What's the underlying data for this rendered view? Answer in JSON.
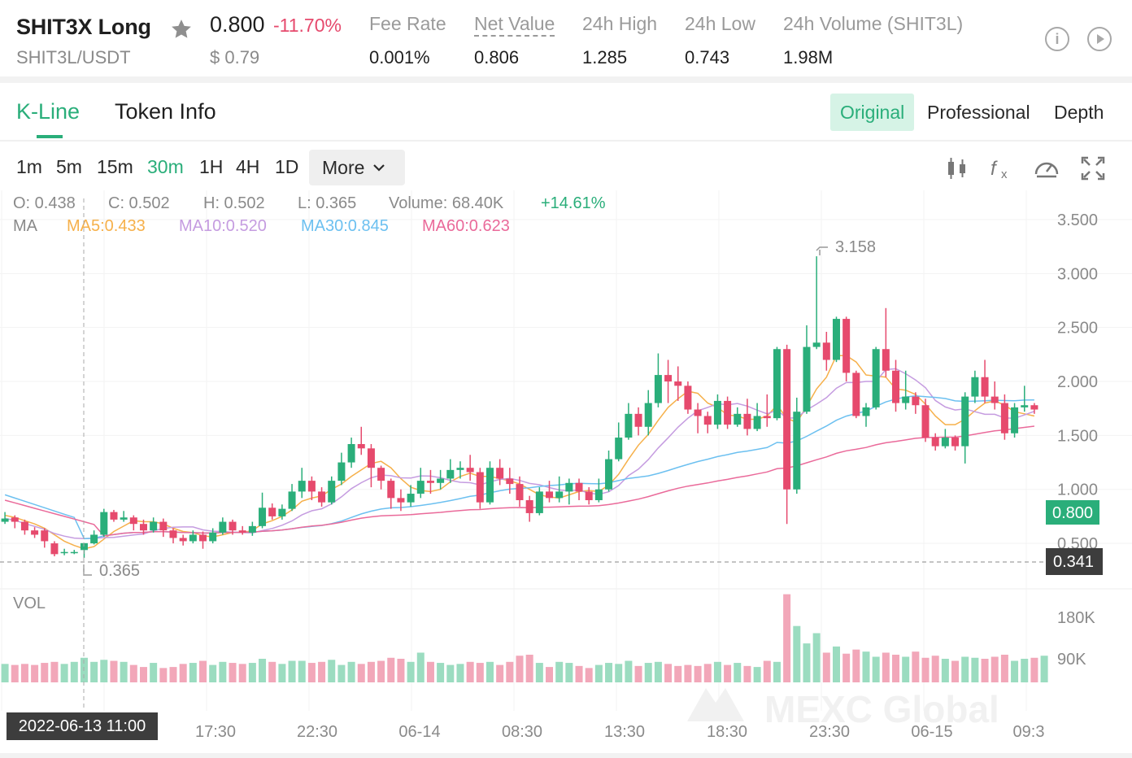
{
  "header": {
    "symbol": "SHIT3X Long",
    "pair": "SHIT3L/USDT",
    "price": "0.800",
    "change": "-11.70%",
    "usd_price": "$ 0.79",
    "stats": [
      {
        "label": "Fee Rate",
        "value": "0.001%"
      },
      {
        "label": "Net Value",
        "value": "0.806"
      },
      {
        "label": "24h High",
        "value": "1.285"
      },
      {
        "label": "24h Low",
        "value": "0.743"
      },
      {
        "label": "24h Volume (SHIT3L)",
        "value": "1.98M"
      }
    ],
    "icons": [
      "info-icon",
      "play-icon"
    ]
  },
  "tabs": {
    "left": [
      "K-Line",
      "Token Info"
    ],
    "active": "K-Line",
    "views": [
      "Original",
      "Professional",
      "Depth"
    ],
    "active_view": "Original"
  },
  "intervals": {
    "items": [
      "1m",
      "5m",
      "15m",
      "30m",
      "1H",
      "4H",
      "1D"
    ],
    "active": "30m",
    "more_label": "More"
  },
  "toolbar_icons": [
    "candle-type-icon",
    "indicator-fx-icon",
    "gauge-icon",
    "fullscreen-icon"
  ],
  "ohlc": {
    "open": "O: 0.438",
    "close": "C: 0.502",
    "high": "H: 0.502",
    "low": "L: 0.365",
    "volume": "Volume: 68.40K",
    "change": "+14.61%"
  },
  "ma": {
    "label": "MA",
    "ma5": "MA5:0.433",
    "ma10": "MA10:0.520",
    "ma30": "MA30:0.845",
    "ma60": "MA60:0.623"
  },
  "chart_data": {
    "type": "candlestick",
    "y_ticks": [
      "3.500",
      "3.000",
      "2.500",
      "2.000",
      "1.500",
      "1.000",
      "0.500"
    ],
    "ylim": [
      0.3,
      3.75
    ],
    "current_price": "0.800",
    "crosshair_price": "0.341",
    "high_marker": "3.158",
    "low_marker": "0.365",
    "crosshair_time": "2022-06-13 11:00",
    "x_ticks": [
      "17:30",
      "22:30",
      "06-14",
      "08:30",
      "13:30",
      "18:30",
      "23:30",
      "06-15",
      "09:3"
    ],
    "vol_label": "VOL",
    "vol_ticks": [
      "180K",
      "90K"
    ],
    "watermark": "MEXC Global",
    "candles": [
      [
        0.7,
        0.73,
        0.79,
        0.68
      ],
      [
        0.74,
        0.7,
        0.76,
        0.64
      ],
      [
        0.7,
        0.62,
        0.72,
        0.58
      ],
      [
        0.62,
        0.58,
        0.65,
        0.55
      ],
      [
        0.62,
        0.52,
        0.64,
        0.46
      ],
      [
        0.5,
        0.4,
        0.52,
        0.38
      ],
      [
        0.41,
        0.42,
        0.45,
        0.39
      ],
      [
        0.42,
        0.42,
        0.44,
        0.4
      ],
      [
        0.438,
        0.502,
        0.502,
        0.365
      ],
      [
        0.5,
        0.58,
        0.62,
        0.49
      ],
      [
        0.58,
        0.79,
        0.82,
        0.56
      ],
      [
        0.79,
        0.72,
        0.81,
        0.7
      ],
      [
        0.72,
        0.74,
        0.8,
        0.7
      ],
      [
        0.74,
        0.68,
        0.76,
        0.62
      ],
      [
        0.68,
        0.62,
        0.72,
        0.58
      ],
      [
        0.62,
        0.7,
        0.74,
        0.6
      ],
      [
        0.7,
        0.62,
        0.73,
        0.56
      ],
      [
        0.62,
        0.55,
        0.64,
        0.5
      ],
      [
        0.55,
        0.52,
        0.58,
        0.48
      ],
      [
        0.52,
        0.58,
        0.62,
        0.5
      ],
      [
        0.58,
        0.52,
        0.61,
        0.45
      ],
      [
        0.52,
        0.6,
        0.64,
        0.5
      ],
      [
        0.6,
        0.7,
        0.74,
        0.58
      ],
      [
        0.7,
        0.62,
        0.72,
        0.58
      ],
      [
        0.62,
        0.6,
        0.66,
        0.58
      ],
      [
        0.6,
        0.66,
        0.7,
        0.57
      ],
      [
        0.66,
        0.83,
        0.97,
        0.64
      ],
      [
        0.83,
        0.75,
        0.87,
        0.72
      ],
      [
        0.75,
        0.82,
        0.86,
        0.72
      ],
      [
        0.82,
        0.98,
        1.05,
        0.8
      ],
      [
        0.98,
        1.08,
        1.2,
        0.92
      ],
      [
        1.08,
        0.98,
        1.12,
        0.9
      ],
      [
        0.98,
        0.88,
        1.02,
        0.84
      ],
      [
        0.88,
        1.08,
        1.12,
        0.86
      ],
      [
        1.08,
        1.25,
        1.34,
        1.04
      ],
      [
        1.25,
        1.42,
        1.48,
        1.2
      ],
      [
        1.42,
        1.38,
        1.58,
        1.32
      ],
      [
        1.38,
        1.2,
        1.42,
        1.02
      ],
      [
        1.2,
        1.08,
        1.22,
        1.0
      ],
      [
        1.08,
        0.92,
        1.1,
        0.82
      ],
      [
        0.92,
        0.88,
        1.0,
        0.8
      ],
      [
        0.88,
        0.96,
        1.04,
        0.84
      ],
      [
        0.96,
        1.08,
        1.2,
        0.92
      ],
      [
        1.08,
        1.06,
        1.18,
        0.96
      ],
      [
        1.06,
        1.1,
        1.18,
        1.0
      ],
      [
        1.1,
        1.18,
        1.28,
        1.06
      ],
      [
        1.18,
        1.2,
        1.26,
        1.1
      ],
      [
        1.2,
        1.16,
        1.32,
        1.08
      ],
      [
        1.16,
        0.88,
        1.2,
        0.82
      ],
      [
        0.88,
        1.2,
        1.26,
        0.86
      ],
      [
        1.2,
        1.1,
        1.28,
        1.04
      ],
      [
        1.1,
        1.05,
        1.2,
        0.96
      ],
      [
        1.05,
        0.9,
        1.12,
        0.84
      ],
      [
        0.9,
        0.78,
        0.94,
        0.7
      ],
      [
        0.78,
        0.98,
        1.02,
        0.76
      ],
      [
        0.98,
        0.92,
        1.08,
        0.88
      ],
      [
        0.92,
        0.98,
        1.12,
        0.88
      ],
      [
        0.98,
        1.06,
        1.1,
        0.86
      ],
      [
        1.06,
        0.98,
        1.1,
        0.9
      ],
      [
        0.98,
        0.9,
        1.02,
        0.86
      ],
      [
        0.9,
        1.0,
        1.1,
        0.88
      ],
      [
        1.0,
        1.28,
        1.36,
        0.98
      ],
      [
        1.28,
        1.48,
        1.62,
        1.26
      ],
      [
        1.48,
        1.7,
        1.8,
        1.46
      ],
      [
        1.7,
        1.58,
        1.76,
        1.5
      ],
      [
        1.58,
        1.8,
        1.92,
        1.5
      ],
      [
        1.8,
        2.06,
        2.26,
        1.76
      ],
      [
        2.06,
        2.0,
        2.2,
        1.8
      ],
      [
        2.0,
        1.96,
        2.14,
        1.82
      ],
      [
        1.96,
        1.74,
        2.0,
        1.7
      ],
      [
        1.74,
        1.68,
        1.8,
        1.52
      ],
      [
        1.68,
        1.6,
        1.72,
        1.52
      ],
      [
        1.6,
        1.82,
        1.88,
        1.56
      ],
      [
        1.82,
        1.6,
        1.86,
        1.56
      ],
      [
        1.6,
        1.7,
        1.76,
        1.58
      ],
      [
        1.7,
        1.56,
        1.84,
        1.5
      ],
      [
        1.56,
        1.68,
        1.8,
        1.54
      ],
      [
        1.68,
        1.66,
        1.88,
        1.58
      ],
      [
        1.66,
        2.3,
        2.32,
        1.64
      ],
      [
        2.3,
        1.0,
        2.34,
        0.68
      ],
      [
        1.0,
        1.72,
        1.85,
        0.96
      ],
      [
        1.72,
        2.32,
        2.52,
        1.7
      ],
      [
        2.32,
        2.36,
        3.16,
        2.3
      ],
      [
        2.36,
        2.2,
        2.46,
        2.1
      ],
      [
        2.2,
        2.58,
        2.6,
        2.18
      ],
      [
        2.58,
        2.08,
        2.6,
        2.0
      ],
      [
        2.08,
        1.68,
        2.1,
        1.66
      ],
      [
        1.68,
        1.76,
        1.8,
        1.58
      ],
      [
        1.76,
        2.3,
        2.32,
        1.74
      ],
      [
        2.3,
        2.1,
        2.68,
        2.04
      ],
      [
        2.1,
        1.8,
        2.2,
        1.72
      ],
      [
        1.8,
        1.86,
        2.1,
        1.74
      ],
      [
        1.86,
        1.78,
        1.9,
        1.7
      ],
      [
        1.78,
        1.48,
        1.84,
        1.44
      ],
      [
        1.48,
        1.4,
        1.52,
        1.36
      ],
      [
        1.4,
        1.48,
        1.56,
        1.38
      ],
      [
        1.48,
        1.4,
        1.5,
        1.36
      ],
      [
        1.4,
        1.86,
        1.9,
        1.24
      ],
      [
        1.86,
        2.04,
        2.1,
        1.8
      ],
      [
        2.04,
        1.86,
        2.2,
        1.8
      ],
      [
        1.86,
        1.8,
        2.0,
        1.74
      ],
      [
        1.8,
        1.52,
        1.88,
        1.46
      ],
      [
        1.52,
        1.76,
        1.8,
        1.48
      ],
      [
        1.76,
        1.78,
        1.96,
        1.72
      ],
      [
        1.78,
        1.74,
        1.8,
        1.7
      ]
    ],
    "volume_k": [
      36,
      34,
      36,
      34,
      38,
      40,
      36,
      40,
      48,
      40,
      44,
      42,
      40,
      34,
      30,
      38,
      28,
      30,
      36,
      38,
      42,
      34,
      40,
      38,
      36,
      38,
      46,
      40,
      36,
      42,
      42,
      38,
      40,
      44,
      34,
      40,
      36,
      40,
      42,
      48,
      46,
      40,
      58,
      40,
      38,
      34,
      36,
      40,
      38,
      40,
      34,
      40,
      52,
      54,
      38,
      30,
      40,
      38,
      32,
      28,
      34,
      38,
      36,
      42,
      32,
      38,
      40,
      36,
      32,
      34,
      32,
      36,
      40,
      34,
      38,
      32,
      30,
      42,
      40,
      172,
      110,
      76,
      96,
      58,
      70,
      56,
      64,
      60,
      50,
      58,
      54,
      50,
      60,
      48,
      52,
      46,
      42,
      50,
      48,
      46,
      50,
      54,
      42,
      46,
      48,
      52
    ],
    "ma_series": {
      "ma5": [
        0.76,
        0.74,
        0.71,
        0.68,
        0.64,
        0.58,
        0.52,
        0.48,
        0.45,
        0.47,
        0.54,
        0.61,
        0.66,
        0.71,
        0.7,
        0.7,
        0.68,
        0.64,
        0.61,
        0.6,
        0.57,
        0.56,
        0.58,
        0.6,
        0.6,
        0.62,
        0.68,
        0.71,
        0.75,
        0.81,
        0.89,
        0.92,
        0.94,
        1.0,
        1.05,
        1.12,
        1.18,
        1.24,
        1.26,
        1.2,
        1.1,
        1.02,
        0.99,
        0.98,
        1.0,
        1.07,
        1.12,
        1.15,
        1.12,
        1.12,
        1.1,
        1.08,
        1.05,
        1.0,
        0.95,
        0.93,
        0.92,
        0.95,
        0.98,
        0.99,
        0.98,
        1.04,
        1.14,
        1.28,
        1.41,
        1.51,
        1.64,
        1.76,
        1.84,
        1.91,
        1.89,
        1.8,
        1.76,
        1.69,
        1.68,
        1.65,
        1.65,
        1.68,
        1.78,
        1.66,
        1.62,
        1.77,
        1.93,
        2.04,
        2.24,
        2.24,
        2.18,
        2.06,
        2.05,
        2.04,
        1.93,
        1.92,
        1.88,
        1.79,
        1.68,
        1.6,
        1.6,
        1.65,
        1.73,
        1.8,
        1.82,
        1.78,
        1.72,
        1.7,
        1.68
      ]
    }
  }
}
